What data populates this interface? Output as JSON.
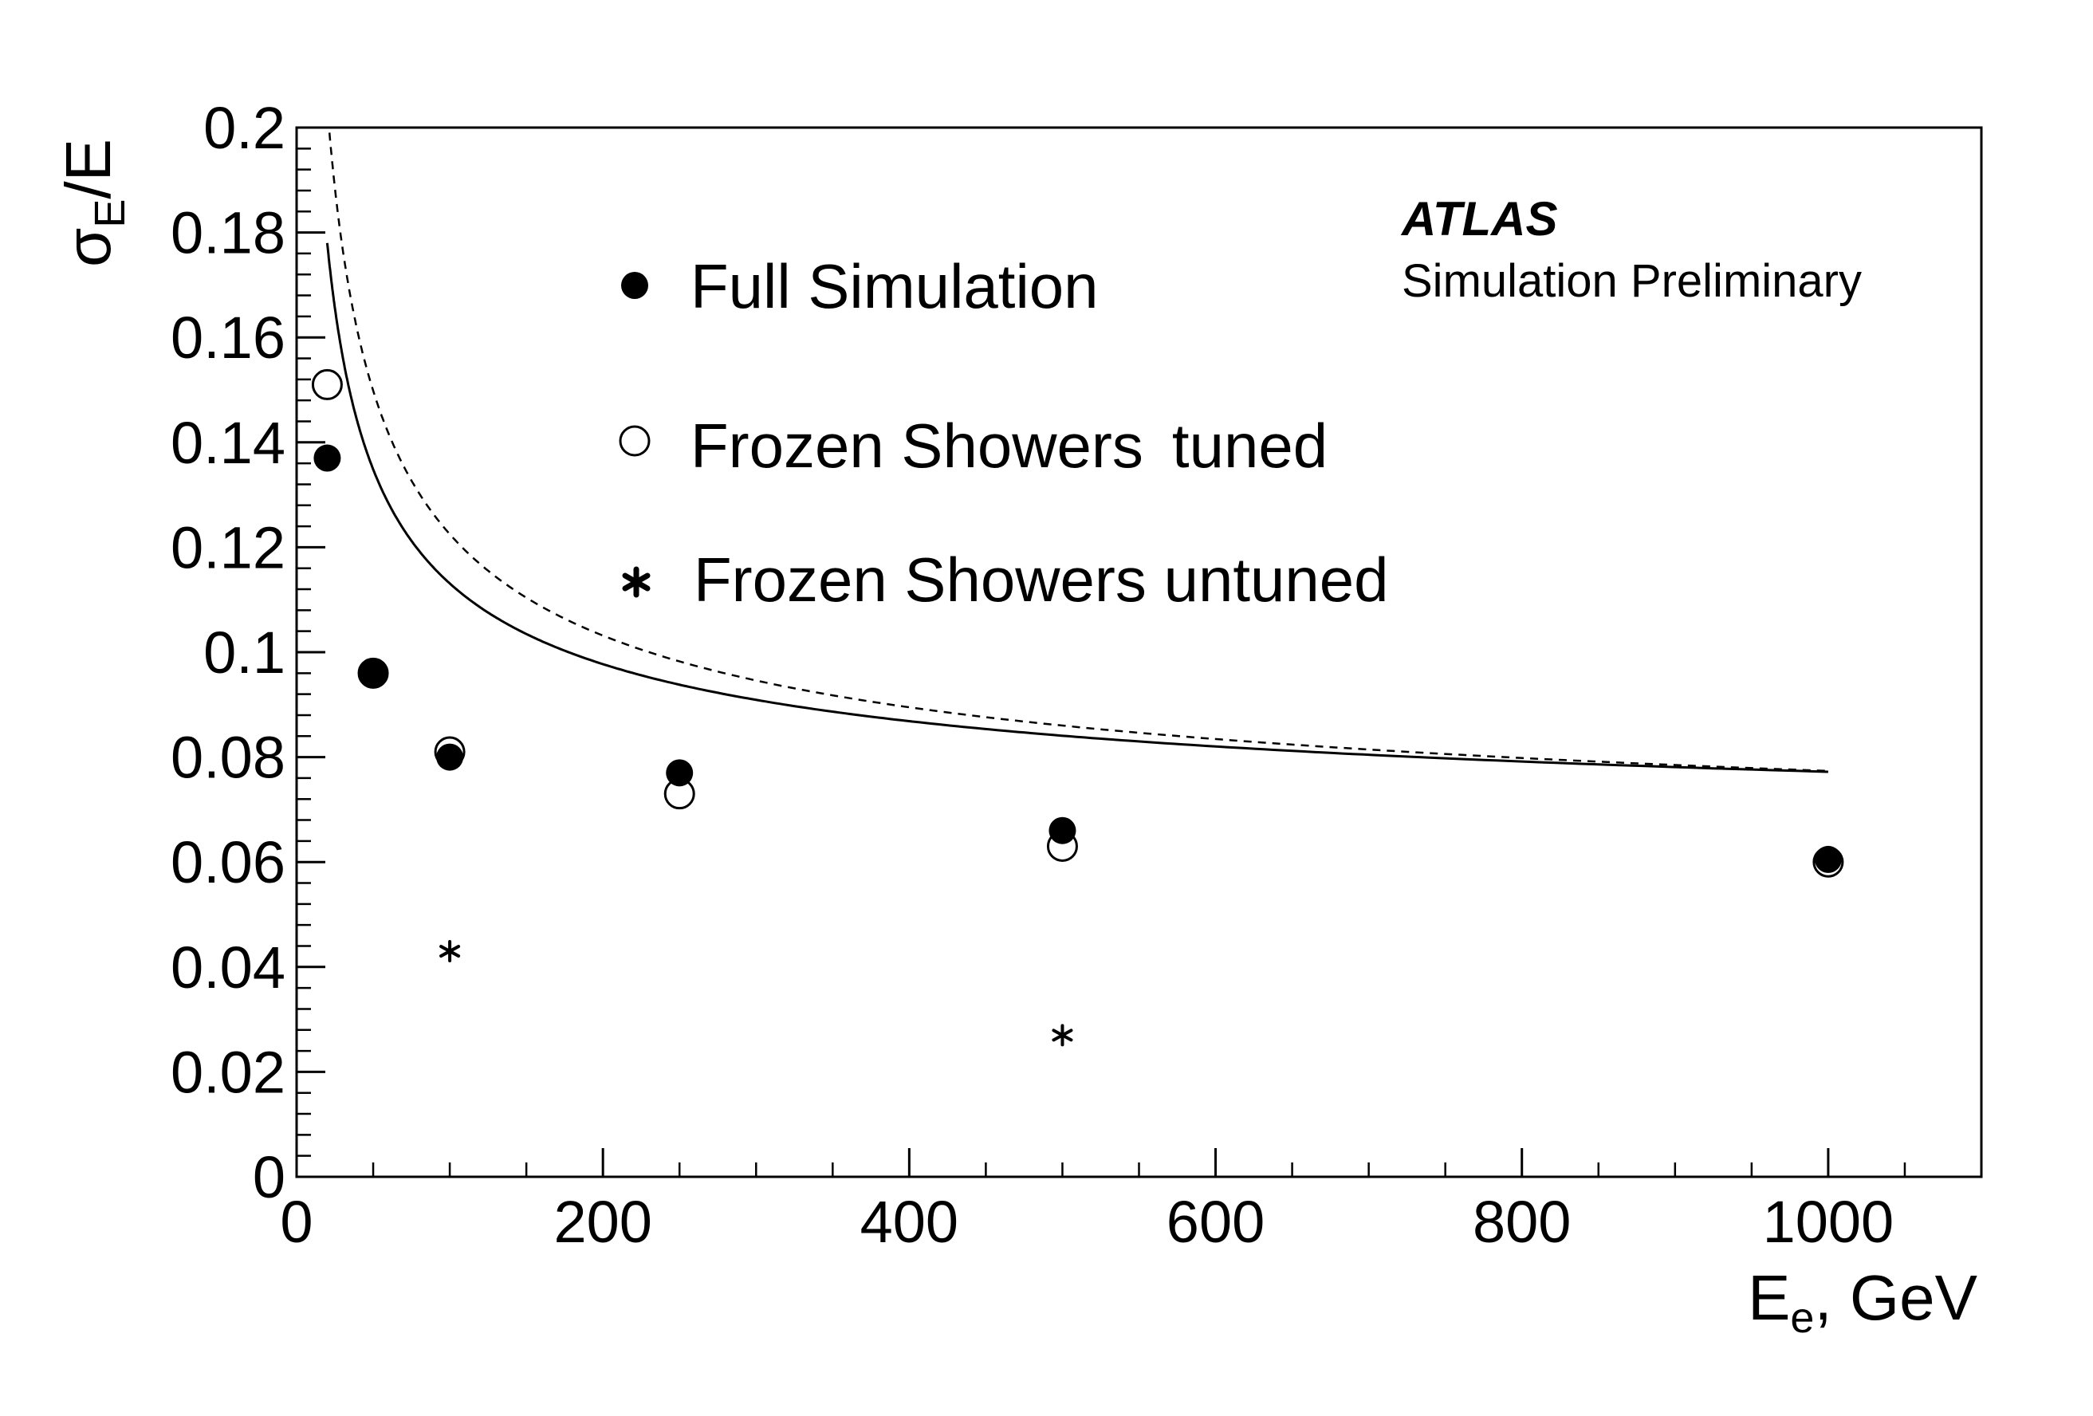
{
  "chart_data": {
    "type": "scatter",
    "title": "",
    "xlabel": {
      "main": "E",
      "sub": "e",
      "suffix": ", GeV"
    },
    "ylabel": {
      "main": "σ",
      "sub": "E",
      "suffix": "/E"
    },
    "xlim": [
      0,
      1100
    ],
    "ylim": [
      0,
      0.2
    ],
    "x_ticks": [
      0,
      200,
      400,
      600,
      800,
      1000
    ],
    "x_tick_labels": [
      "0",
      "200",
      "400",
      "600",
      "800",
      "1000"
    ],
    "y_ticks": [
      0,
      0.02,
      0.04,
      0.06,
      0.08,
      0.1,
      0.12,
      0.14,
      0.16,
      0.18,
      0.2
    ],
    "y_tick_labels": [
      "0",
      "0.02",
      "0.04",
      "0.06",
      "0.08",
      "0.1",
      "0.12",
      "0.14",
      "0.16",
      "0.18",
      "0.2"
    ],
    "grid": false,
    "legend_position": "top-center",
    "annotation": {
      "experiment": "ATLAS",
      "status": "Simulation Preliminary"
    },
    "series": [
      {
        "name": "Full Simulation",
        "marker": "filled-circle",
        "x": [
          20,
          50,
          100,
          250,
          500,
          1000
        ],
        "y": [
          0.137,
          0.096,
          0.08,
          0.077,
          0.066,
          0.0605
        ]
      },
      {
        "name": "Frozen Showers",
        "name_suffix": "tuned",
        "marker": "open-circle",
        "x": [
          20,
          50,
          100,
          250,
          500,
          1000
        ],
        "y": [
          0.151,
          0.096,
          0.081,
          0.073,
          0.063,
          0.06
        ]
      },
      {
        "name": "Frozen Showers untuned",
        "marker": "asterisk",
        "x": [
          100,
          500
        ],
        "y": [
          0.043,
          0.027
        ]
      }
    ],
    "fits": [
      {
        "series": "Full Simulation",
        "style": "solid",
        "a": 0.525,
        "b": 0.0606,
        "x_range": [
          20,
          1000
        ]
      },
      {
        "series": "Frozen Showers tuned",
        "style": "dashed",
        "a": 0.66,
        "b": 0.0565,
        "x_range": [
          15,
          1000
        ]
      }
    ]
  }
}
